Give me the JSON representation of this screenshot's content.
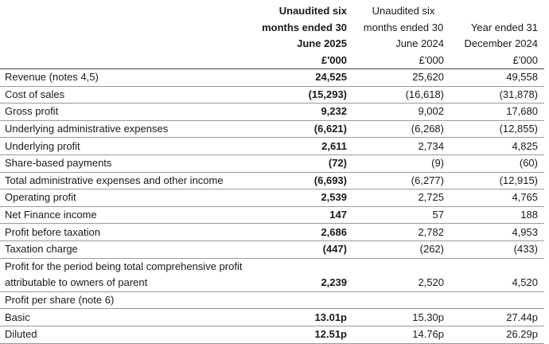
{
  "headers": {
    "current": [
      "Unaudited six",
      "months ended 30",
      "June 2025",
      "£'000"
    ],
    "prior": [
      "Unaudited six",
      "months ended 30",
      "June 2024",
      "£'000"
    ],
    "year": [
      "",
      "Year ended 31",
      "December 2024",
      "£'000"
    ]
  },
  "rows": [
    {
      "label": "Revenue (notes 4,5)",
      "current": "24,525",
      "prior": "25,620",
      "year": "49,558"
    },
    {
      "label": "Cost of sales",
      "current": "(15,293)",
      "prior": "(16,618)",
      "year": "(31,878)"
    },
    {
      "label": "Gross profit",
      "current": "9,232",
      "prior": "9,002",
      "year": "17,680"
    },
    {
      "label": "Underlying administrative expenses",
      "current": "(6,621)",
      "prior": "(6,268)",
      "year": "(12,855)"
    },
    {
      "label": "Underlying profit",
      "current": "2,611",
      "prior": "2,734",
      "year": "4,825"
    },
    {
      "label": "Share-based payments",
      "current": "(72)",
      "prior": "(9)",
      "year": "(60)"
    },
    {
      "label": "Total administrative expenses and other income",
      "current": "(6,693)",
      "prior": "(6,277)",
      "year": "(12,915)"
    },
    {
      "label": "Operating profit",
      "current": "2,539",
      "prior": "2,725",
      "year": "4,765"
    },
    {
      "label": "Net Finance income",
      "current": "147",
      "prior": "57",
      "year": "188"
    },
    {
      "label": "Profit before taxation",
      "current": "2,686",
      "prior": "2,782",
      "year": "4,953"
    },
    {
      "label": "Taxation charge",
      "current": "(447)",
      "prior": "(262)",
      "year": "(433)"
    },
    {
      "label": "Profit for the period being total comprehensive profit",
      "current": "",
      "prior": "",
      "year": ""
    },
    {
      "label": "attributable to owners of parent",
      "current": "2,239",
      "prior": "2,520",
      "year": "4,520"
    },
    {
      "label": "Profit per share (note 6)",
      "current": "",
      "prior": "",
      "year": ""
    },
    {
      "label": "Basic",
      "current": "13.01p",
      "prior": "15.30p",
      "year": "27.44p"
    },
    {
      "label": "Diluted",
      "current": "12.51p",
      "prior": "14.76p",
      "year": "26.29p"
    }
  ]
}
